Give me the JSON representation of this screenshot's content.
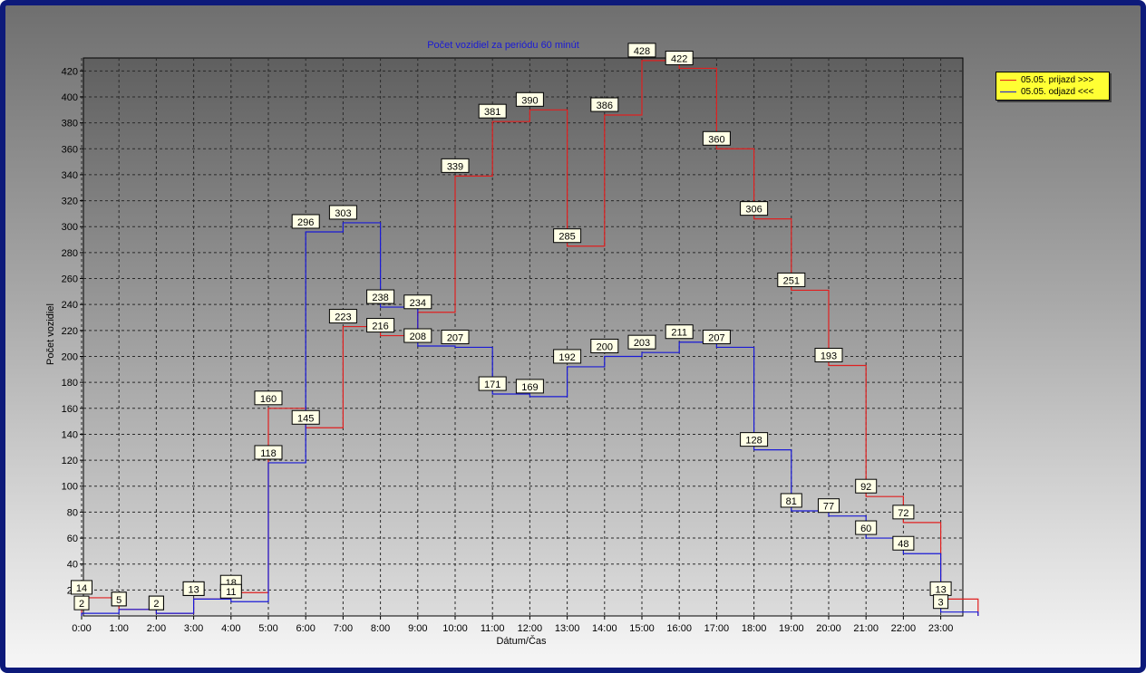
{
  "chart_data": {
    "type": "line",
    "step": true,
    "title": "Počet vozidiel za periódu 60 minút",
    "xlabel": "Dátum/Čas",
    "ylabel": "Počet vozidiel",
    "categories": [
      "0:00",
      "1:00",
      "2:00",
      "3:00",
      "4:00",
      "5:00",
      "6:00",
      "7:00",
      "8:00",
      "9:00",
      "10:00",
      "11:00",
      "12:00",
      "13:00",
      "14:00",
      "15:00",
      "16:00",
      "17:00",
      "18:00",
      "19:00",
      "20:00",
      "21:00",
      "22:00",
      "23:00"
    ],
    "y_ticks": [
      20,
      40,
      60,
      80,
      100,
      120,
      140,
      160,
      180,
      200,
      220,
      240,
      260,
      280,
      300,
      320,
      340,
      360,
      380,
      400,
      420
    ],
    "ylim": [
      0,
      430
    ],
    "grid": true,
    "legend_position": "right",
    "series": [
      {
        "name": "05.05.  prijazd >>>",
        "color": "#e02020",
        "values": [
          14,
          5,
          2,
          13,
          18,
          160,
          145,
          223,
          216,
          234,
          339,
          381,
          390,
          285,
          386,
          428,
          422,
          360,
          306,
          251,
          193,
          92,
          72,
          13
        ]
      },
      {
        "name": "05.05.  odjazd <<<",
        "color": "#1a1ad6",
        "values": [
          2,
          5,
          2,
          13,
          11,
          118,
          296,
          303,
          238,
          208,
          207,
          171,
          169,
          192,
          200,
          203,
          211,
          207,
          128,
          81,
          77,
          60,
          48,
          3
        ]
      }
    ]
  }
}
